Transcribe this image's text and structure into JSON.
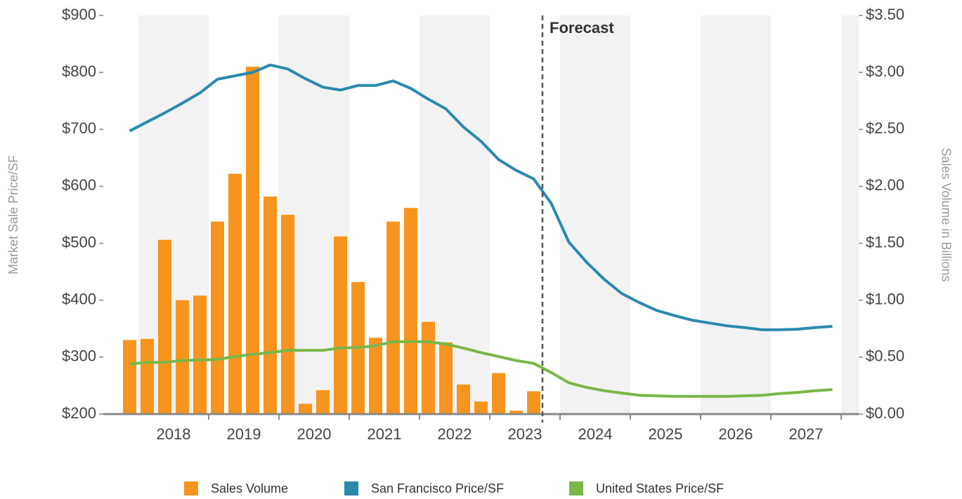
{
  "chart_data": {
    "type": "bar-line",
    "y_label": "Market Sale Price/SF",
    "y2_label": "Sales Volume in Billions",
    "forecast": {
      "x": 2023.75,
      "label": "Forecast"
    },
    "xlim": [
      2017.5,
      2028.25
    ],
    "xticks": [
      {
        "value": 2018.5,
        "label": "2018"
      },
      {
        "value": 2019.5,
        "label": "2019"
      },
      {
        "value": 2020.5,
        "label": "2020"
      },
      {
        "value": 2021.5,
        "label": "2021"
      },
      {
        "value": 2022.5,
        "label": "2022"
      },
      {
        "value": 2023.5,
        "label": "2023"
      },
      {
        "value": 2024.5,
        "label": "2024"
      },
      {
        "value": 2025.5,
        "label": "2025"
      },
      {
        "value": 2026.5,
        "label": "2026"
      },
      {
        "value": 2027.5,
        "label": "2027"
      }
    ],
    "ylim": [
      200,
      900
    ],
    "yticks": [
      {
        "value": 200,
        "label": "$200"
      },
      {
        "value": 300,
        "label": "$300"
      },
      {
        "value": 400,
        "label": "$400"
      },
      {
        "value": 500,
        "label": "$500"
      },
      {
        "value": 600,
        "label": "$600"
      },
      {
        "value": 700,
        "label": "$700"
      },
      {
        "value": 800,
        "label": "$800"
      },
      {
        "value": 900,
        "label": "$900"
      }
    ],
    "y2lim": [
      0,
      3.5
    ],
    "y2ticks": [
      {
        "value": 0,
        "label": "$0.00"
      },
      {
        "value": 0.5,
        "label": "$0.50"
      },
      {
        "value": 1,
        "label": "$1.00"
      },
      {
        "value": 1.5,
        "label": "$1.50"
      },
      {
        "value": 2,
        "label": "$2.00"
      },
      {
        "value": 2.5,
        "label": "$2.50"
      },
      {
        "value": 3,
        "label": "$3.00"
      },
      {
        "value": 3.5,
        "label": "$3.50"
      }
    ],
    "x": [
      2017.875,
      2018.125,
      2018.375,
      2018.625,
      2018.875,
      2019.125,
      2019.375,
      2019.625,
      2019.875,
      2020.125,
      2020.375,
      2020.625,
      2020.875,
      2021.125,
      2021.375,
      2021.625,
      2021.875,
      2022.125,
      2022.375,
      2022.625,
      2022.875,
      2023.125,
      2023.375,
      2023.625,
      2023.875,
      2024.125,
      2024.375,
      2024.625,
      2024.875,
      2025.125,
      2025.375,
      2025.625,
      2025.875,
      2026.125,
      2026.375,
      2026.625,
      2026.875,
      2027.125,
      2027.375,
      2027.625,
      2027.875
    ],
    "series": [
      {
        "name": "Sales Volume",
        "type": "bar",
        "axis": "y2",
        "color": "#f7941d",
        "values": [
          0.65,
          0.66,
          1.53,
          1.0,
          1.04,
          1.69,
          2.11,
          3.05,
          1.91,
          1.75,
          0.09,
          0.21,
          1.56,
          1.16,
          0.67,
          1.69,
          1.81,
          0.81,
          0.63,
          0.26,
          0.11,
          0.36,
          0.03,
          0.2,
          null,
          null,
          null,
          null,
          null,
          null,
          null,
          null,
          null,
          null,
          null,
          null,
          null,
          null,
          null,
          null,
          null
        ]
      },
      {
        "name": "San Francisco Price/SF",
        "type": "line",
        "color": "#2a8aac",
        "values": [
          697,
          713,
          729,
          746,
          764,
          788,
          794,
          800,
          813,
          806,
          789,
          774,
          769,
          777,
          777,
          785,
          772,
          753,
          736,
          704,
          679,
          647,
          628,
          613,
          570,
          502,
          467,
          437,
          412,
          396,
          382,
          373,
          365,
          360,
          355,
          352,
          348,
          348,
          349,
          352,
          354
        ]
      },
      {
        "name": "United States Price/SF",
        "type": "line",
        "color": "#7ab648",
        "values": [
          288,
          291,
          291,
          294,
          295,
          296,
          301,
          305,
          308,
          312,
          312,
          312,
          316,
          317,
          320,
          327,
          327,
          327,
          323,
          316,
          308,
          301,
          294,
          289,
          273,
          255,
          247,
          241,
          237,
          233,
          232,
          231,
          231,
          231,
          231,
          232,
          233,
          236,
          238,
          241,
          243
        ]
      }
    ]
  }
}
